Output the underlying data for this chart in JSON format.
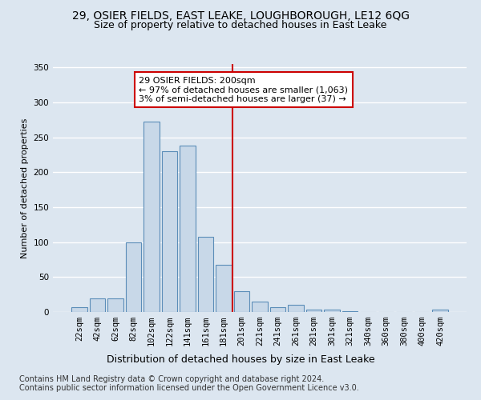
{
  "title1": "29, OSIER FIELDS, EAST LEAKE, LOUGHBOROUGH, LE12 6QG",
  "title2": "Size of property relative to detached houses in East Leake",
  "xlabel": "Distribution of detached houses by size in East Leake",
  "ylabel": "Number of detached properties",
  "categories": [
    "22sqm",
    "42sqm",
    "62sqm",
    "82sqm",
    "102sqm",
    "122sqm",
    "141sqm",
    "161sqm",
    "181sqm",
    "201sqm",
    "221sqm",
    "241sqm",
    "261sqm",
    "281sqm",
    "301sqm",
    "321sqm",
    "340sqm",
    "360sqm",
    "380sqm",
    "400sqm",
    "420sqm"
  ],
  "values": [
    7,
    19,
    19,
    100,
    272,
    230,
    238,
    108,
    67,
    30,
    15,
    7,
    10,
    4,
    3,
    1,
    0,
    0,
    0,
    0,
    3
  ],
  "bar_color": "#c8d8e8",
  "bar_edge_color": "#5b8db8",
  "bar_edge_width": 0.8,
  "vline_idx": 9,
  "vline_color": "#cc0000",
  "annotation_text": "29 OSIER FIELDS: 200sqm\n← 97% of detached houses are smaller (1,063)\n3% of semi-detached houses are larger (37) →",
  "annotation_box_color": "#ffffff",
  "annotation_box_edge": "#cc0000",
  "ylim": [
    0,
    355
  ],
  "yticks": [
    0,
    50,
    100,
    150,
    200,
    250,
    300,
    350
  ],
  "background_color": "#dce6f0",
  "plot_bg_color": "#dce6f0",
  "grid_color": "#ffffff",
  "footer1": "Contains HM Land Registry data © Crown copyright and database right 2024.",
  "footer2": "Contains public sector information licensed under the Open Government Licence v3.0.",
  "title1_fontsize": 10,
  "title2_fontsize": 9,
  "xlabel_fontsize": 9,
  "ylabel_fontsize": 8,
  "tick_fontsize": 7.5,
  "annotation_fontsize": 8,
  "footer_fontsize": 7
}
